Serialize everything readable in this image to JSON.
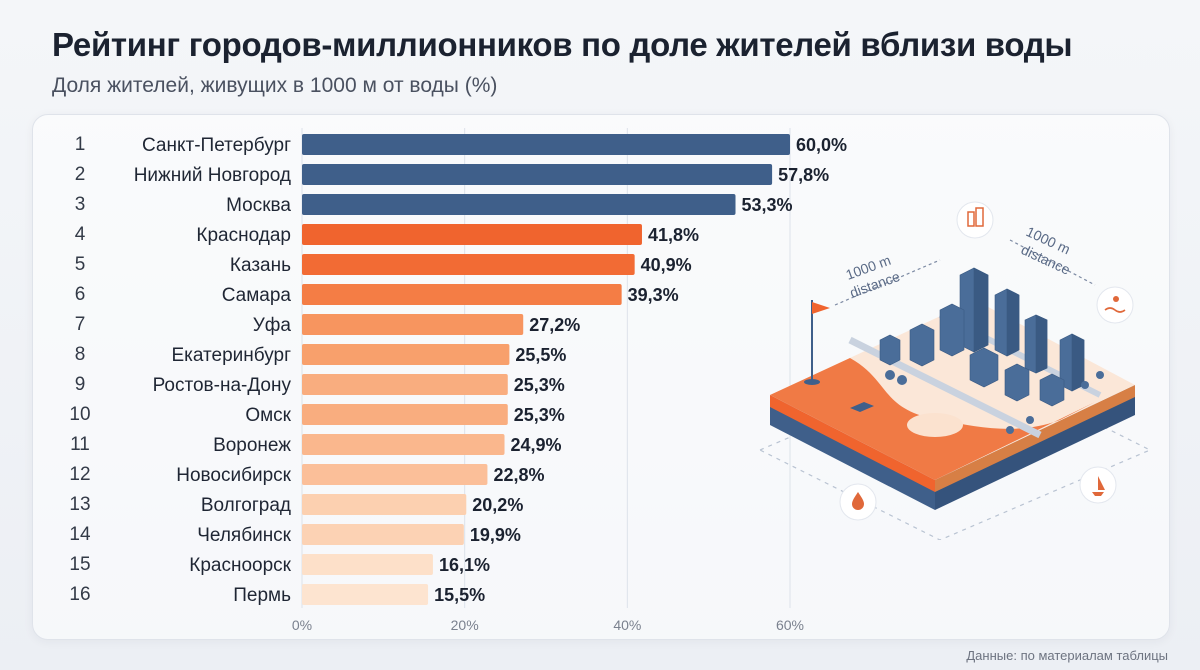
{
  "header": {
    "title": "Рейтинг городов-миллионников по доле жителей вблизи воды",
    "subtitle": "Доля жителей, живущих в 1000 м от воды (%)"
  },
  "chart_data": {
    "type": "bar",
    "orientation": "horizontal",
    "title": "Рейтинг городов-миллионников по доле жителей вблизи воды",
    "subtitle": "Доля жителей, живущих в 1000 м от воды (%)",
    "ranks": [
      "1",
      "2",
      "3",
      "4",
      "5",
      "6",
      "7",
      "8",
      "9",
      "10",
      "11",
      "12",
      "13",
      "14",
      "15",
      "16"
    ],
    "categories": [
      "Санкт-Петербург",
      "Нижний Новгород",
      "Москва",
      "Краснодар",
      "Казань",
      "Самара",
      "Уфа",
      "Екатеринбург",
      "Ростов-на-Дону",
      "Омск",
      "Воронеж",
      "Новосибирск",
      "Волгоград",
      "Челябинск",
      "Красноорск",
      "Пермь"
    ],
    "values": [
      60.0,
      57.8,
      53.3,
      41.8,
      40.9,
      39.3,
      27.2,
      25.5,
      25.3,
      25.3,
      24.9,
      22.8,
      20.2,
      19.9,
      16.1,
      15.5
    ],
    "value_labels": [
      "60,0%",
      "57,8%",
      "53,3%",
      "41,8%",
      "40,9%",
      "39,3%",
      "27,2%",
      "25,5%",
      "25,3%",
      "25,3%",
      "24,9%",
      "22,8%",
      "20,2%",
      "19,9%",
      "16,1%",
      "15,5%"
    ],
    "bar_colors": [
      "#3f5f8a",
      "#3f5f8a",
      "#3f5f8a",
      "#f0642e",
      "#f26b34",
      "#f47d45",
      "#f7955f",
      "#f8a06c",
      "#f9ad7f",
      "#f9ad7f",
      "#fab78d",
      "#fbbf99",
      "#fcd0b0",
      "#fcd2b4",
      "#fde0c9",
      "#fde4d0"
    ],
    "xlim": [
      0,
      60
    ],
    "xticks": [
      0,
      20,
      40,
      60
    ],
    "xtick_labels": [
      "0%",
      "20%",
      "40%",
      "60%"
    ],
    "grid": true,
    "xlabel": "",
    "ylabel": ""
  },
  "illustration": {
    "labels": [
      "1000 m",
      "distance",
      "1000 m",
      "distance"
    ],
    "icons": [
      "building-icon",
      "flag-icon",
      "swimmer-icon",
      "sailboat-icon",
      "water-drop-icon"
    ],
    "colors": {
      "water": "#f07a45",
      "land": "#fbe7d8",
      "buildings": "#4a6d99",
      "base": "#3f5f8a"
    }
  },
  "footer": {
    "source": "Данные: по материалам таблицы"
  }
}
